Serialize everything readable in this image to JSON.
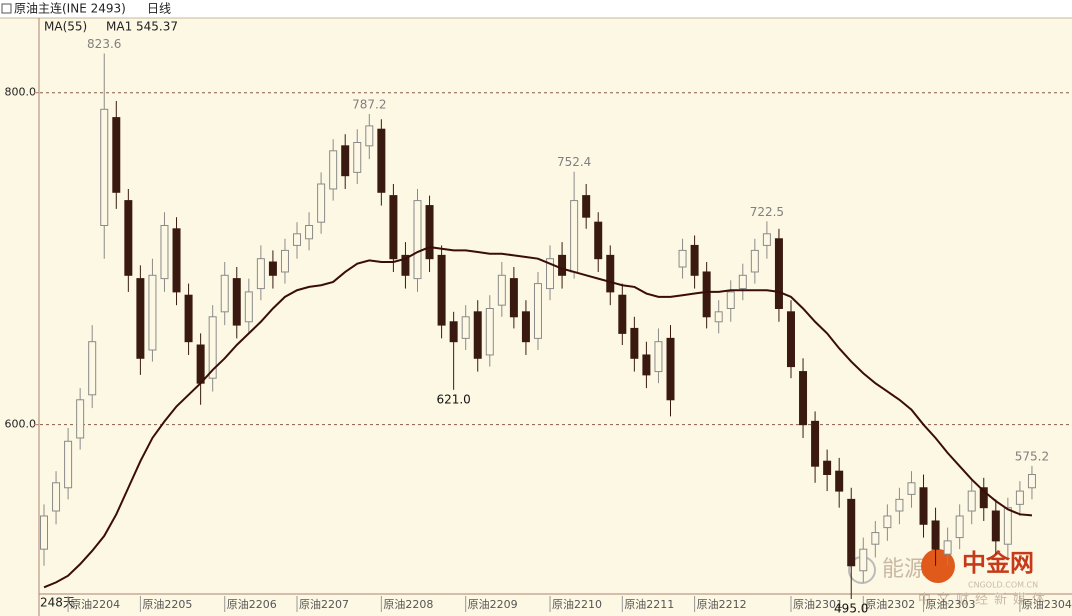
{
  "chart_data": {
    "type": "candlestick",
    "header": {
      "title": "原油主连(INE 2493)",
      "period": "日线",
      "indicator": "MA(55)",
      "ma_label": "MA1 545.37"
    },
    "days_label": "248天",
    "watermark": [
      "能源",
      "中金网",
      "CNGOLD.COM.CN",
      "中文财经新媒体"
    ],
    "categories": [
      null,
      null,
      "原油2204",
      null,
      null,
      null,
      null,
      null,
      "原油2205",
      null,
      null,
      null,
      null,
      null,
      null,
      "原油2206",
      null,
      null,
      null,
      null,
      null,
      "原油2207",
      null,
      null,
      null,
      null,
      null,
      null,
      "原油2208",
      null,
      null,
      null,
      null,
      null,
      null,
      "原油2209",
      null,
      null,
      null,
      null,
      null,
      null,
      "原油2210",
      null,
      null,
      null,
      null,
      null,
      "原油2211",
      null,
      null,
      null,
      null,
      null,
      "原油2212",
      null,
      null,
      null,
      null,
      null,
      null,
      null,
      "原油2301",
      null,
      null,
      null,
      null,
      null,
      "原油2302",
      null,
      null,
      null,
      null,
      "原油2303",
      null,
      null,
      null,
      null,
      null,
      null,
      null,
      "原油2304",
      null
    ],
    "open": [
      525,
      548,
      562,
      592,
      618,
      720,
      785,
      735,
      688,
      645,
      688,
      718,
      678,
      648,
      628,
      668,
      688,
      662,
      682,
      698,
      692,
      708,
      712,
      722,
      742,
      768,
      752,
      768,
      778,
      738,
      702,
      688,
      732,
      702,
      662,
      652,
      668,
      642,
      672,
      688,
      668,
      652,
      682,
      702,
      692,
      738,
      722,
      702,
      678,
      658,
      642,
      632,
      652,
      695,
      708,
      692,
      662,
      670,
      682,
      692,
      708,
      712,
      668,
      632,
      602,
      578,
      572,
      555,
      512,
      528,
      538,
      548,
      558,
      562,
      542,
      522,
      532,
      548,
      562,
      548,
      528,
      552,
      562
    ],
    "high": [
      552,
      572,
      598,
      622,
      660,
      823.6,
      795,
      742,
      696,
      700,
      728,
      725,
      685,
      655,
      672,
      698,
      695,
      688,
      708,
      705,
      712,
      722,
      728,
      752,
      772,
      775,
      778,
      787.2,
      784,
      745,
      710,
      742,
      738,
      708,
      668,
      672,
      675,
      678,
      698,
      695,
      675,
      692,
      708,
      710,
      752.4,
      745,
      728,
      708,
      685,
      665,
      650,
      658,
      660,
      712,
      714,
      698,
      675,
      687,
      697,
      712,
      722.5,
      718,
      675,
      640,
      608,
      585,
      580,
      562,
      532,
      542,
      552,
      562,
      572,
      570,
      550,
      538,
      552,
      567,
      568,
      555,
      556,
      566,
      575.2
    ],
    "low": [
      515,
      540,
      555,
      585,
      610,
      700,
      730,
      680,
      630,
      638,
      680,
      672,
      642,
      612,
      620,
      660,
      652,
      655,
      675,
      682,
      685,
      700,
      705,
      715,
      735,
      742,
      745,
      760,
      732,
      692,
      682,
      680,
      692,
      652,
      621.0,
      645,
      632,
      635,
      665,
      658,
      642,
      645,
      675,
      682,
      688,
      718,
      692,
      672,
      648,
      632,
      622,
      625,
      605,
      688,
      682,
      658,
      655,
      662,
      675,
      685,
      700,
      662,
      628,
      592,
      565,
      560,
      550,
      495.0,
      505,
      520,
      530,
      540,
      550,
      532,
      515,
      515,
      525,
      540,
      542,
      522,
      520,
      545,
      555
    ],
    "close": [
      545,
      565,
      590,
      615,
      650,
      790,
      740,
      690,
      640,
      690,
      720,
      680,
      650,
      625,
      665,
      690,
      660,
      680,
      700,
      690,
      705,
      715,
      720,
      745,
      765,
      750,
      770,
      780,
      740,
      700,
      690,
      735,
      700,
      660,
      650,
      665,
      640,
      670,
      690,
      665,
      650,
      685,
      700,
      690,
      735,
      725,
      700,
      680,
      655,
      640,
      630,
      650,
      615,
      705,
      690,
      665,
      668,
      680,
      690,
      705,
      715,
      670,
      635,
      600,
      575,
      570,
      560,
      515,
      525,
      535,
      545,
      555,
      565,
      540,
      525,
      530,
      545,
      560,
      550,
      530,
      550,
      560,
      570
    ],
    "ma": {
      "color": "#3a0d08",
      "values": [
        502,
        505,
        509,
        516,
        524,
        533,
        546,
        562,
        578,
        592,
        602,
        611,
        618,
        625,
        633,
        640,
        648,
        655,
        662,
        670,
        677,
        681,
        683,
        684,
        686,
        692,
        697,
        699,
        698,
        698,
        700,
        704,
        707,
        706,
        705,
        705,
        704,
        703,
        703,
        702,
        701,
        700,
        697,
        694,
        692,
        690,
        688,
        686,
        684,
        683,
        679,
        677,
        677,
        678,
        679,
        680,
        680,
        681,
        681,
        681,
        681,
        680,
        677,
        670,
        662,
        655,
        646,
        638,
        631,
        625,
        620,
        615,
        609,
        600,
        592,
        583,
        575,
        567,
        560,
        554,
        549,
        546,
        545.37
      ]
    },
    "up_color": "#8a8a8a",
    "down_color": "#3a1a10",
    "annotations": [
      {
        "value": 823.6,
        "label": "823.6"
      },
      {
        "value": 787.2,
        "label": "787.2"
      },
      {
        "value": 621.0,
        "label": "621.0"
      },
      {
        "value": 752.4,
        "label": "752.4"
      },
      {
        "value": 722.5,
        "label": "722.5"
      },
      {
        "value": 495.0,
        "label": "495.0"
      },
      {
        "value": 575.2,
        "label": "575.2"
      }
    ],
    "ylim": [
      498,
      845
    ],
    "yticks": [
      {
        "value": 800,
        "label": "800.0"
      },
      {
        "value": 600,
        "label": "600.0"
      }
    ],
    "grid": true
  }
}
